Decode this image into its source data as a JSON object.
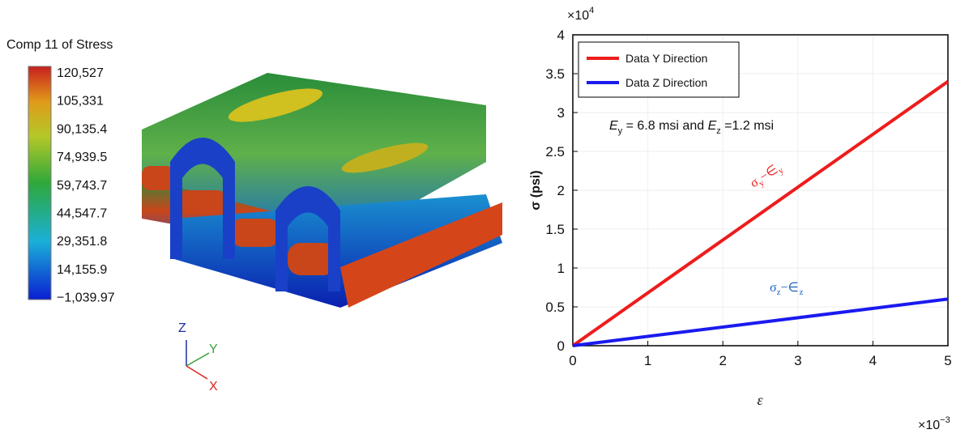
{
  "stress_legend": {
    "title": "Comp 11 of Stress",
    "labels": [
      "120,527",
      "105,331",
      "90,135.4",
      "74,939.5",
      "59,743.7",
      "44,547.7",
      "29,351.8",
      "14,155.9",
      "−1,039.97"
    ]
  },
  "axes_triad": {
    "z": "Z",
    "y": "Y",
    "x": "X"
  },
  "chart_data": {
    "type": "line",
    "ylabel": "σ (psi)",
    "xlabel": "ε",
    "y_scale": {
      "base": "×10",
      "exponent": "4"
    },
    "x_scale": {
      "base": "×10",
      "exponent": "−3"
    },
    "x": [
      0,
      5
    ],
    "series": [
      {
        "name": "Data Y Direction",
        "color": "#ee1c1c",
        "values": [
          0,
          3.4
        ]
      },
      {
        "name": "Data Z Direction",
        "color": "#1a1aee",
        "values": [
          0,
          0.6
        ]
      }
    ],
    "xlim": [
      0,
      5
    ],
    "xticks": [
      0,
      1,
      2,
      3,
      4,
      5
    ],
    "ylim": [
      0,
      4
    ],
    "yticks": [
      0,
      0.5,
      1,
      1.5,
      2,
      2.5,
      3,
      3.5,
      4
    ],
    "grid": true,
    "legend": "upper left",
    "annotation": [
      "E",
      "y",
      " = 6.8 msi and ",
      "E",
      "z",
      " =1.2 msi"
    ],
    "y_line_label": [
      "σ",
      "y",
      "−∈",
      "y"
    ],
    "z_line_label": [
      "σ",
      "z",
      "−∈",
      "z"
    ]
  }
}
